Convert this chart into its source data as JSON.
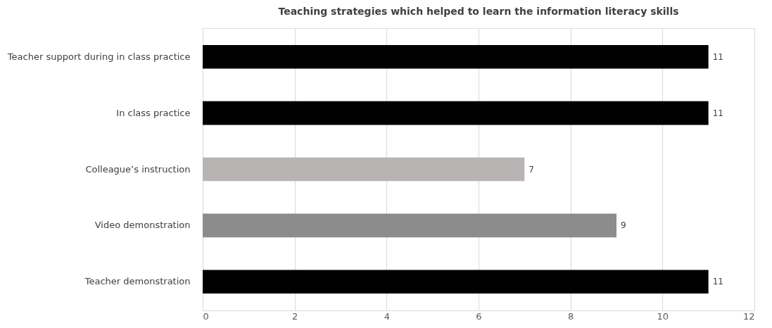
{
  "chart_data": {
    "type": "bar",
    "orientation": "horizontal",
    "title": "Teaching strategies which helped to learn the information literacy skills",
    "categories": [
      "Teacher support during in class practice",
      "In class practice",
      "Colleague’s instruction",
      "Video demonstration",
      "Teacher demonstration"
    ],
    "values": [
      11,
      11,
      7,
      9,
      11
    ],
    "colors": [
      "#000000",
      "#000000",
      "#b8b4b4",
      "#8c8c8c",
      "#000000"
    ],
    "xlim": [
      0,
      12
    ],
    "xticks": [
      0,
      2,
      4,
      6,
      8,
      10,
      12
    ],
    "grid": "x",
    "data_labels": true
  }
}
